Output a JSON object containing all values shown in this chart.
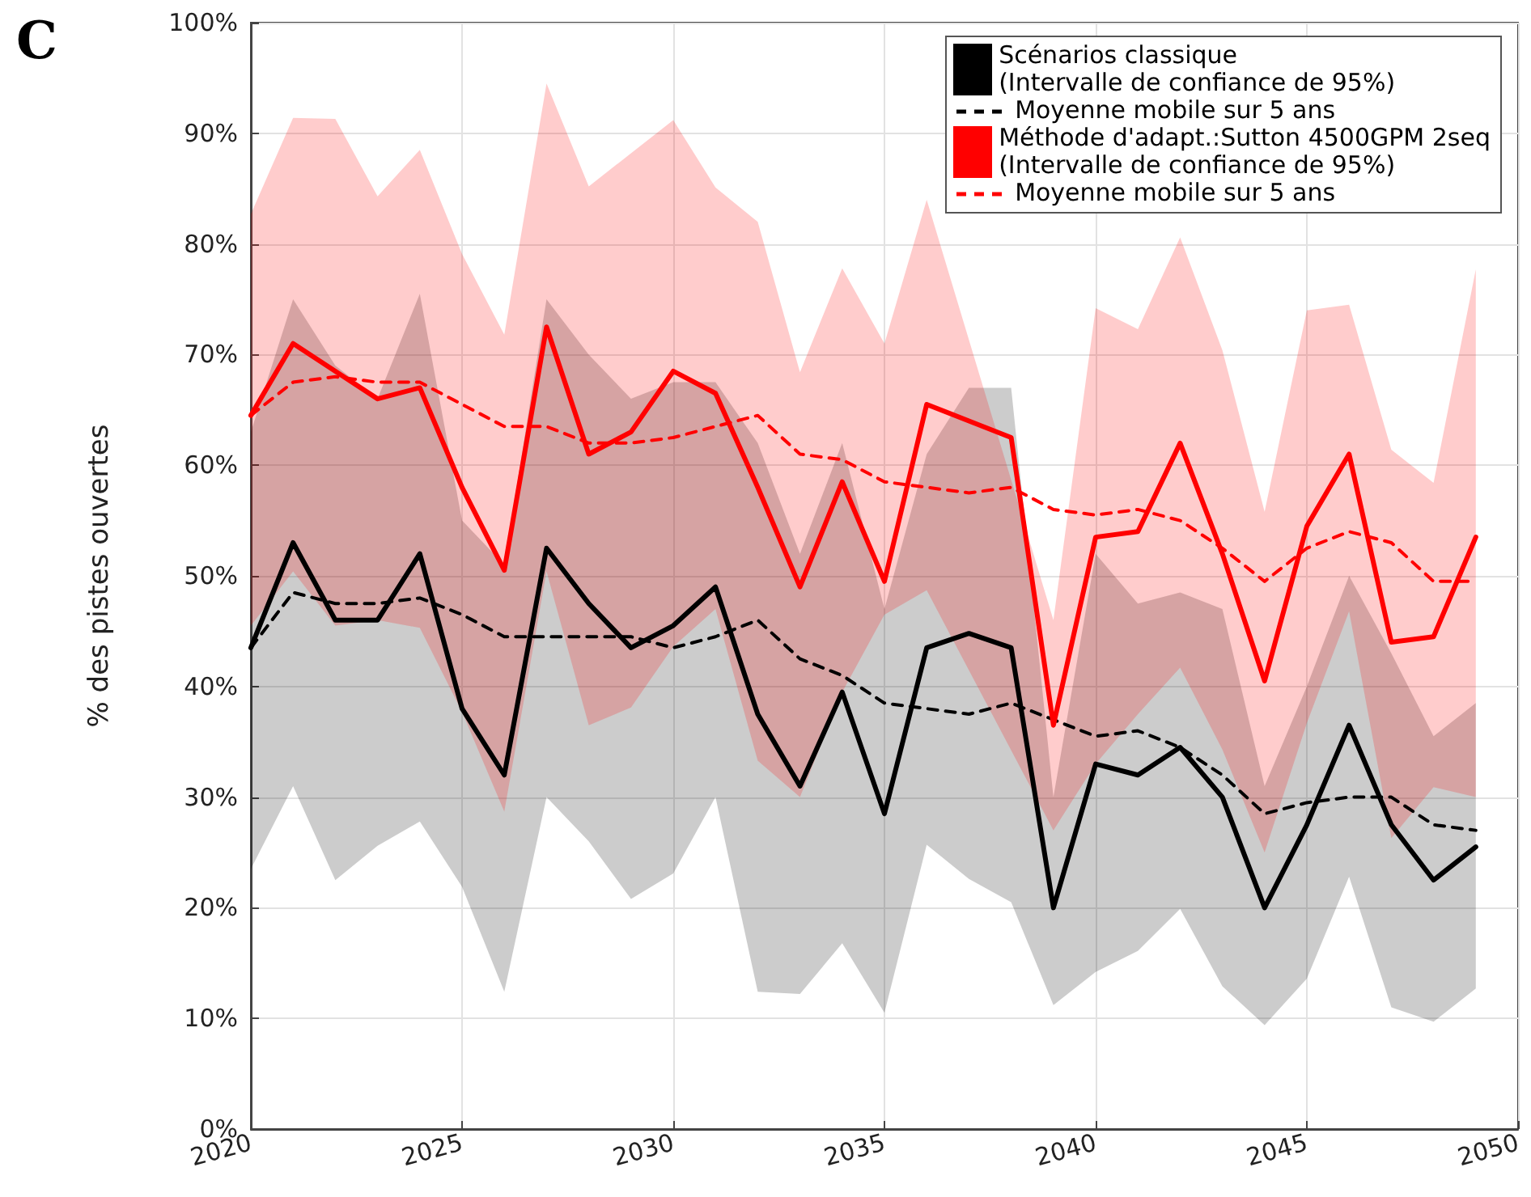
{
  "chart_data": {
    "type": "line",
    "title": "C",
    "ylabel": "% des pistes ouvertes",
    "x": [
      2020,
      2021,
      2022,
      2023,
      2024,
      2025,
      2026,
      2027,
      2028,
      2029,
      2030,
      2031,
      2032,
      2033,
      2034,
      2035,
      2036,
      2037,
      2038,
      2039,
      2040,
      2041,
      2042,
      2043,
      2044,
      2045,
      2046,
      2047,
      2048,
      2049
    ],
    "xlim": [
      2020,
      2050
    ],
    "xticks": [
      2020,
      2025,
      2030,
      2035,
      2040,
      2045,
      2050
    ],
    "ylim": [
      0,
      100
    ],
    "yticks": [
      {
        "value": 0,
        "label": "0%"
      },
      {
        "value": 10,
        "label": "10%"
      },
      {
        "value": 20,
        "label": "20%"
      },
      {
        "value": 30,
        "label": "30%"
      },
      {
        "value": 40,
        "label": "40%"
      },
      {
        "value": 50,
        "label": "50%"
      },
      {
        "value": 60,
        "label": "60%"
      },
      {
        "value": 70,
        "label": "70%"
      },
      {
        "value": 80,
        "label": "80%"
      },
      {
        "value": 90,
        "label": "90%"
      },
      {
        "value": 100,
        "label": "100%"
      }
    ],
    "grid": true,
    "legend": "top right",
    "marker": "none",
    "series": [
      {
        "name": "Scénarios classique\n(Intervalle de confiance de 95%)",
        "color": "#000000",
        "line_style": "solid",
        "values": [
          43.5,
          53,
          46,
          46,
          52,
          38,
          32,
          52.5,
          47.5,
          43.5,
          45.5,
          49,
          37.5,
          31,
          39.5,
          28.5,
          43.5,
          44.8,
          43.5,
          20,
          33,
          32,
          34.5,
          30,
          20,
          27.5,
          36.5,
          27.5,
          22.5,
          25.5
        ],
        "lower": [
          23.5,
          31,
          22.5,
          25.6,
          27.8,
          21.9,
          12.4,
          30,
          26,
          20.8,
          23.1,
          30,
          12.4,
          12.2,
          16.8,
          10.5,
          25.7,
          22.6,
          20.5,
          11.2,
          14.2,
          16.1,
          19.9,
          12.9,
          9.4,
          13.6,
          22.8,
          11,
          9.7,
          12.7
        ],
        "upper": [
          63,
          75,
          69,
          66,
          75.5,
          55,
          51,
          75,
          70,
          66,
          67.5,
          67.5,
          62,
          52,
          62,
          47,
          61,
          67,
          67,
          30,
          52,
          47.5,
          48.5,
          47,
          31,
          40,
          50,
          43,
          35.5,
          38.5
        ]
      },
      {
        "name": "Moyenne mobile sur 5 ans",
        "color": "#000000",
        "line_style": "dashed",
        "values": [
          43.5,
          48.5,
          47.5,
          47.5,
          48,
          46.5,
          44.5,
          44.5,
          44.5,
          44.5,
          43.5,
          44.5,
          46,
          42.5,
          41,
          38.5,
          38,
          37.5,
          38.5,
          37,
          35.5,
          36,
          34.5,
          32,
          28.5,
          29.5,
          30,
          30,
          27.5,
          27
        ]
      },
      {
        "name": "Méthode d'adapt.:Sutton 4500GPM 2seq\n(Intervalle de confiance de 95%)",
        "color": "#ff0000",
        "line_style": "solid",
        "values": [
          64.5,
          71,
          68.5,
          66,
          67,
          58,
          50.5,
          72.5,
          61,
          63,
          68.5,
          66.5,
          58,
          49,
          58.5,
          49.5,
          65.5,
          64,
          62.5,
          36.5,
          53.5,
          54,
          62,
          52,
          40.5,
          54.5,
          61,
          44,
          44.5,
          53.5
        ],
        "lower": [
          45.5,
          50.4,
          45.5,
          46,
          45.3,
          37.7,
          28.7,
          50.4,
          36.5,
          38.1,
          43.6,
          47,
          33.3,
          30,
          39.5,
          46.5,
          48.7,
          null,
          null,
          27,
          33,
          37.5,
          41.7,
          34.3,
          25,
          36.7,
          46.8,
          26.3,
          30.9,
          30
        ],
        "upper": [
          82.7,
          91.4,
          91.3,
          84.3,
          88.5,
          79.1,
          71.8,
          94.5,
          85.2,
          88.2,
          91.2,
          85.1,
          82,
          68.4,
          77.8,
          71,
          84,
          null,
          null,
          46,
          74.2,
          72.3,
          80.6,
          70.4,
          55.8,
          74,
          74.5,
          61.4,
          58.4,
          77.7
        ]
      },
      {
        "name": "Moyenne mobile sur 5 ans",
        "color": "#ff0000",
        "line_style": "dashed",
        "values": [
          64.5,
          67.5,
          68,
          67.5,
          67.5,
          65.5,
          63.5,
          63.5,
          62,
          62,
          62.5,
          63.5,
          64.5,
          61,
          60.5,
          58.5,
          58,
          57.5,
          58,
          56,
          55.5,
          56,
          55,
          52.5,
          49.5,
          52.5,
          54,
          53,
          49.5,
          49.5
        ]
      }
    ]
  }
}
